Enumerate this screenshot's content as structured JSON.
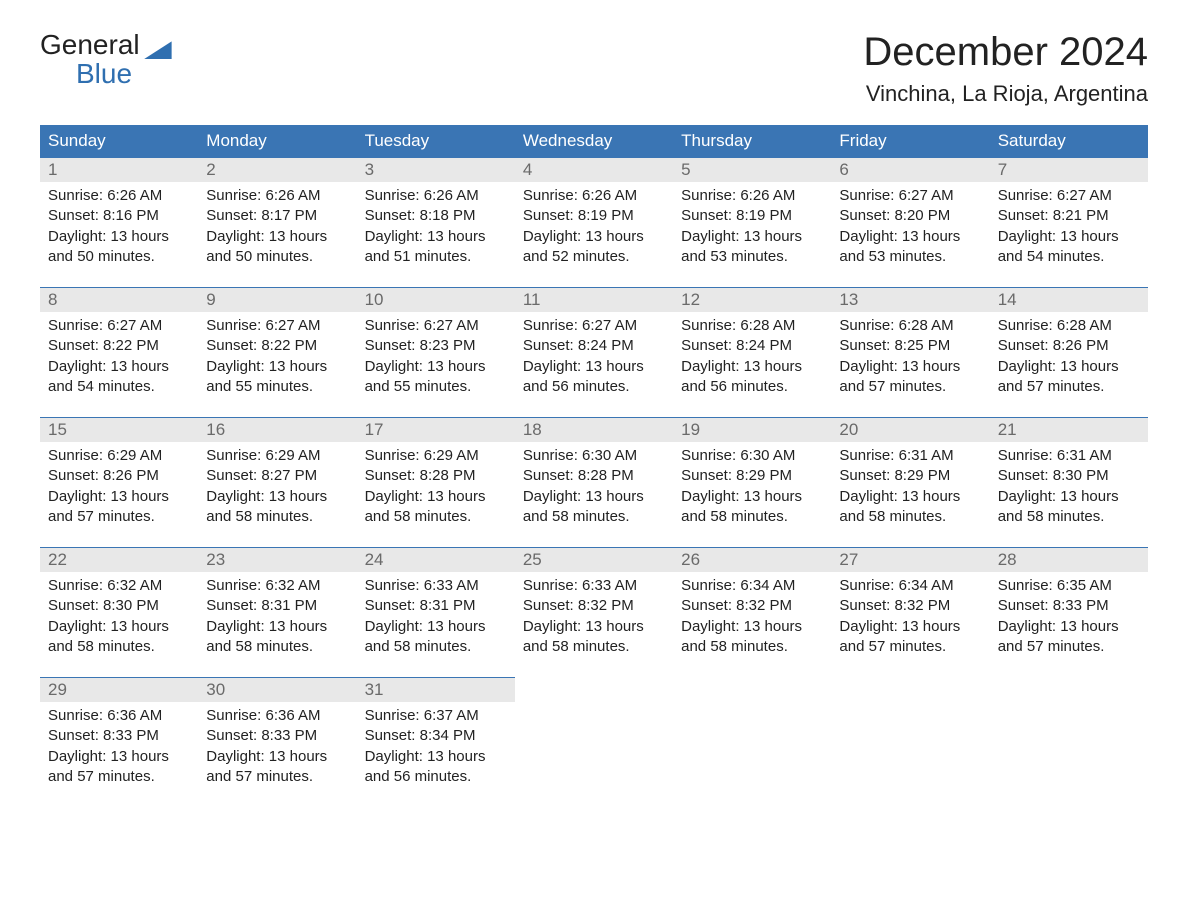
{
  "logo": {
    "line1": "General",
    "line2": "Blue"
  },
  "title": "December 2024",
  "location": "Vinchina, La Rioja, Argentina",
  "colors": {
    "header_bg": "#3a75b4",
    "header_text": "#ffffff",
    "daynum_bg": "#e8e8e8",
    "daynum_text": "#6a6a6a",
    "body_text": "#222222",
    "logo_blue": "#2f6fb0",
    "border": "#3a75b4",
    "background": "#ffffff"
  },
  "typography": {
    "title_fontsize": 40,
    "location_fontsize": 22,
    "header_fontsize": 17,
    "daynum_fontsize": 17,
    "content_fontsize": 15,
    "logo_fontsize": 28
  },
  "headers": [
    "Sunday",
    "Monday",
    "Tuesday",
    "Wednesday",
    "Thursday",
    "Friday",
    "Saturday"
  ],
  "labels": {
    "sunrise": "Sunrise:",
    "sunset": "Sunset:",
    "daylight": "Daylight:"
  },
  "weeks": [
    [
      {
        "day": "1",
        "sunrise": "6:26 AM",
        "sunset": "8:16 PM",
        "daylight": "13 hours and 50 minutes."
      },
      {
        "day": "2",
        "sunrise": "6:26 AM",
        "sunset": "8:17 PM",
        "daylight": "13 hours and 50 minutes."
      },
      {
        "day": "3",
        "sunrise": "6:26 AM",
        "sunset": "8:18 PM",
        "daylight": "13 hours and 51 minutes."
      },
      {
        "day": "4",
        "sunrise": "6:26 AM",
        "sunset": "8:19 PM",
        "daylight": "13 hours and 52 minutes."
      },
      {
        "day": "5",
        "sunrise": "6:26 AM",
        "sunset": "8:19 PM",
        "daylight": "13 hours and 53 minutes."
      },
      {
        "day": "6",
        "sunrise": "6:27 AM",
        "sunset": "8:20 PM",
        "daylight": "13 hours and 53 minutes."
      },
      {
        "day": "7",
        "sunrise": "6:27 AM",
        "sunset": "8:21 PM",
        "daylight": "13 hours and 54 minutes."
      }
    ],
    [
      {
        "day": "8",
        "sunrise": "6:27 AM",
        "sunset": "8:22 PM",
        "daylight": "13 hours and 54 minutes."
      },
      {
        "day": "9",
        "sunrise": "6:27 AM",
        "sunset": "8:22 PM",
        "daylight": "13 hours and 55 minutes."
      },
      {
        "day": "10",
        "sunrise": "6:27 AM",
        "sunset": "8:23 PM",
        "daylight": "13 hours and 55 minutes."
      },
      {
        "day": "11",
        "sunrise": "6:27 AM",
        "sunset": "8:24 PM",
        "daylight": "13 hours and 56 minutes."
      },
      {
        "day": "12",
        "sunrise": "6:28 AM",
        "sunset": "8:24 PM",
        "daylight": "13 hours and 56 minutes."
      },
      {
        "day": "13",
        "sunrise": "6:28 AM",
        "sunset": "8:25 PM",
        "daylight": "13 hours and 57 minutes."
      },
      {
        "day": "14",
        "sunrise": "6:28 AM",
        "sunset": "8:26 PM",
        "daylight": "13 hours and 57 minutes."
      }
    ],
    [
      {
        "day": "15",
        "sunrise": "6:29 AM",
        "sunset": "8:26 PM",
        "daylight": "13 hours and 57 minutes."
      },
      {
        "day": "16",
        "sunrise": "6:29 AM",
        "sunset": "8:27 PM",
        "daylight": "13 hours and 58 minutes."
      },
      {
        "day": "17",
        "sunrise": "6:29 AM",
        "sunset": "8:28 PM",
        "daylight": "13 hours and 58 minutes."
      },
      {
        "day": "18",
        "sunrise": "6:30 AM",
        "sunset": "8:28 PM",
        "daylight": "13 hours and 58 minutes."
      },
      {
        "day": "19",
        "sunrise": "6:30 AM",
        "sunset": "8:29 PM",
        "daylight": "13 hours and 58 minutes."
      },
      {
        "day": "20",
        "sunrise": "6:31 AM",
        "sunset": "8:29 PM",
        "daylight": "13 hours and 58 minutes."
      },
      {
        "day": "21",
        "sunrise": "6:31 AM",
        "sunset": "8:30 PM",
        "daylight": "13 hours and 58 minutes."
      }
    ],
    [
      {
        "day": "22",
        "sunrise": "6:32 AM",
        "sunset": "8:30 PM",
        "daylight": "13 hours and 58 minutes."
      },
      {
        "day": "23",
        "sunrise": "6:32 AM",
        "sunset": "8:31 PM",
        "daylight": "13 hours and 58 minutes."
      },
      {
        "day": "24",
        "sunrise": "6:33 AM",
        "sunset": "8:31 PM",
        "daylight": "13 hours and 58 minutes."
      },
      {
        "day": "25",
        "sunrise": "6:33 AM",
        "sunset": "8:32 PM",
        "daylight": "13 hours and 58 minutes."
      },
      {
        "day": "26",
        "sunrise": "6:34 AM",
        "sunset": "8:32 PM",
        "daylight": "13 hours and 58 minutes."
      },
      {
        "day": "27",
        "sunrise": "6:34 AM",
        "sunset": "8:32 PM",
        "daylight": "13 hours and 57 minutes."
      },
      {
        "day": "28",
        "sunrise": "6:35 AM",
        "sunset": "8:33 PM",
        "daylight": "13 hours and 57 minutes."
      }
    ],
    [
      {
        "day": "29",
        "sunrise": "6:36 AM",
        "sunset": "8:33 PM",
        "daylight": "13 hours and 57 minutes."
      },
      {
        "day": "30",
        "sunrise": "6:36 AM",
        "sunset": "8:33 PM",
        "daylight": "13 hours and 57 minutes."
      },
      {
        "day": "31",
        "sunrise": "6:37 AM",
        "sunset": "8:34 PM",
        "daylight": "13 hours and 56 minutes."
      },
      null,
      null,
      null,
      null
    ]
  ]
}
